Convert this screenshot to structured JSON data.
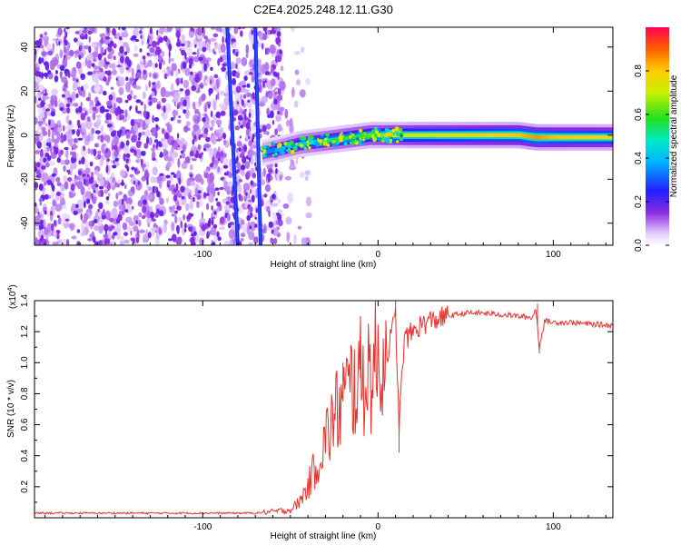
{
  "title": "C2E4.2025.248.12.11.G30",
  "chart_data": [
    {
      "type": "heatmap",
      "name": "spectrogram",
      "xlabel": "Height of straight line (km)",
      "ylabel": "Frequency (Hz)",
      "xlim": [
        -196,
        134
      ],
      "ylim": [
        -50,
        49
      ],
      "xticks": [
        -100,
        0,
        100
      ],
      "xtick_labels": [
        "-100",
        "0",
        "100"
      ],
      "yticks": [
        -40,
        -20,
        0,
        20,
        40
      ],
      "ytick_labels": [
        "-40",
        "-20",
        "0",
        "20",
        "40"
      ],
      "colorbar": {
        "label": "Normalized spectral amplitude",
        "range": [
          0,
          1
        ],
        "ticks": [
          0.0,
          0.2,
          0.4,
          0.6,
          0.8
        ],
        "tick_labels": [
          "0.0",
          "0.2",
          "0.4",
          "0.6",
          "0.8"
        ]
      },
      "features": {
        "noise_region_x": [
          -196,
          -55
        ],
        "streak_lines": [
          {
            "x_top": -86,
            "x_bottom": -80
          },
          {
            "x_top": -70,
            "x_bottom": -67
          }
        ],
        "signal_band": {
          "x": [
            -66,
            -55,
            -45,
            -35,
            -25,
            -15,
            -5,
            5,
            20,
            50,
            80,
            90,
            100,
            134
          ],
          "center_hz": [
            -8,
            -6,
            -4,
            -3,
            -2,
            -1,
            0,
            0,
            0,
            0,
            0,
            -1,
            -1,
            -1
          ],
          "amplitude": [
            0.35,
            0.45,
            0.5,
            0.55,
            0.6,
            0.65,
            0.7,
            0.75,
            0.8,
            0.85,
            0.9,
            0.95,
            0.9,
            0.85
          ]
        }
      }
    },
    {
      "type": "line",
      "name": "snr",
      "xlabel": "Height of straight line (km)",
      "ylabel": "SNR (10 * v/v)",
      "multiplier_label": "(x10",
      "multiplier_exp": "4",
      "multiplier_close": ")",
      "xlim": [
        -196,
        134
      ],
      "ylim": [
        0,
        1.4
      ],
      "xticks": [
        -100,
        0,
        100
      ],
      "xtick_labels": [
        "-100",
        "0",
        "100"
      ],
      "yticks": [
        0.2,
        0.4,
        0.6,
        0.8,
        1.0,
        1.2,
        1.4
      ],
      "ytick_labels": [
        "0.2",
        "0.4",
        "0.6",
        "0.8",
        "1.0",
        "1.2",
        "1.4"
      ],
      "color": "#e8312c",
      "x": [
        -196,
        -150,
        -100,
        -70,
        -60,
        -50,
        -45,
        -40,
        -35,
        -30,
        -25,
        -20,
        -15,
        -10,
        -5,
        0,
        5,
        10,
        12,
        15,
        20,
        25,
        30,
        40,
        50,
        60,
        70,
        80,
        88,
        90,
        92,
        95,
        100,
        110,
        120,
        134
      ],
      "y": [
        0.03,
        0.03,
        0.03,
        0.03,
        0.04,
        0.05,
        0.1,
        0.2,
        0.35,
        0.5,
        0.65,
        0.75,
        0.85,
        0.9,
        0.95,
        1.0,
        1.05,
        1.3,
        0.6,
        1.15,
        1.2,
        1.25,
        1.27,
        1.3,
        1.32,
        1.32,
        1.31,
        1.3,
        1.29,
        1.35,
        1.1,
        1.27,
        1.26,
        1.26,
        1.25,
        1.24
      ],
      "spikes": [
        {
          "x": 10,
          "y": 1.4
        },
        {
          "x": -10,
          "y": 1.1
        },
        {
          "x": -20,
          "y": 1.0
        },
        {
          "x": 12,
          "y": 0.42
        },
        {
          "x": 91,
          "y": 1.38
        },
        {
          "x": 92,
          "y": 1.06
        }
      ]
    }
  ]
}
